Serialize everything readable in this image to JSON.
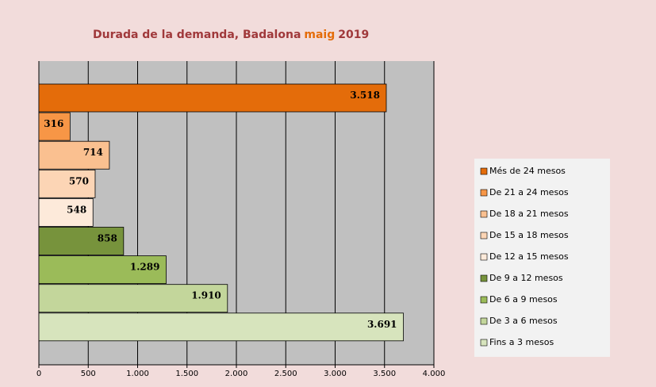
{
  "chart_data": {
    "type": "bar",
    "orientation": "horizontal",
    "title": [
      "Durada de la demanda, Badalona",
      "maig",
      "2019"
    ],
    "title_colors": [
      "#a0393b",
      "#e46c0a",
      "#a0393b"
    ],
    "categories": [
      "Més de 24 mesos",
      "De 21 a 24 mesos",
      "De 18 a 21 mesos",
      "De 15 a 18 mesos",
      "De 12 a 15 mesos",
      "De 9 a 12 mesos",
      "De 6 a 9 mesos",
      "De 3 a 6 mesos",
      "Fins a 3 mesos"
    ],
    "values": [
      3518,
      316,
      714,
      570,
      548,
      858,
      1289,
      1910,
      3691
    ],
    "value_labels": [
      "3.518",
      "316",
      "714",
      "570",
      "548",
      "858",
      "1.289",
      "1.910",
      "3.691"
    ],
    "colors": [
      "#e46c0a",
      "#f79646",
      "#fac090",
      "#fcd5b5",
      "#fdeada",
      "#77933c",
      "#9bbb59",
      "#c3d69b",
      "#d7e4bd"
    ],
    "xlim": [
      0,
      4000
    ],
    "xticks": [
      0,
      500,
      {
        "value": 1000,
        "label": "1.000"
      },
      {
        "value": 1500,
        "label": "1.500"
      },
      {
        "value": 2000,
        "label": "2.000"
      },
      {
        "value": 2500,
        "label": "2.500"
      },
      {
        "value": 3000,
        "label": "3.000"
      },
      {
        "value": 3500,
        "label": "3.500"
      },
      {
        "value": 4000,
        "label": "4.000"
      }
    ],
    "grid": true,
    "legend": "right"
  }
}
